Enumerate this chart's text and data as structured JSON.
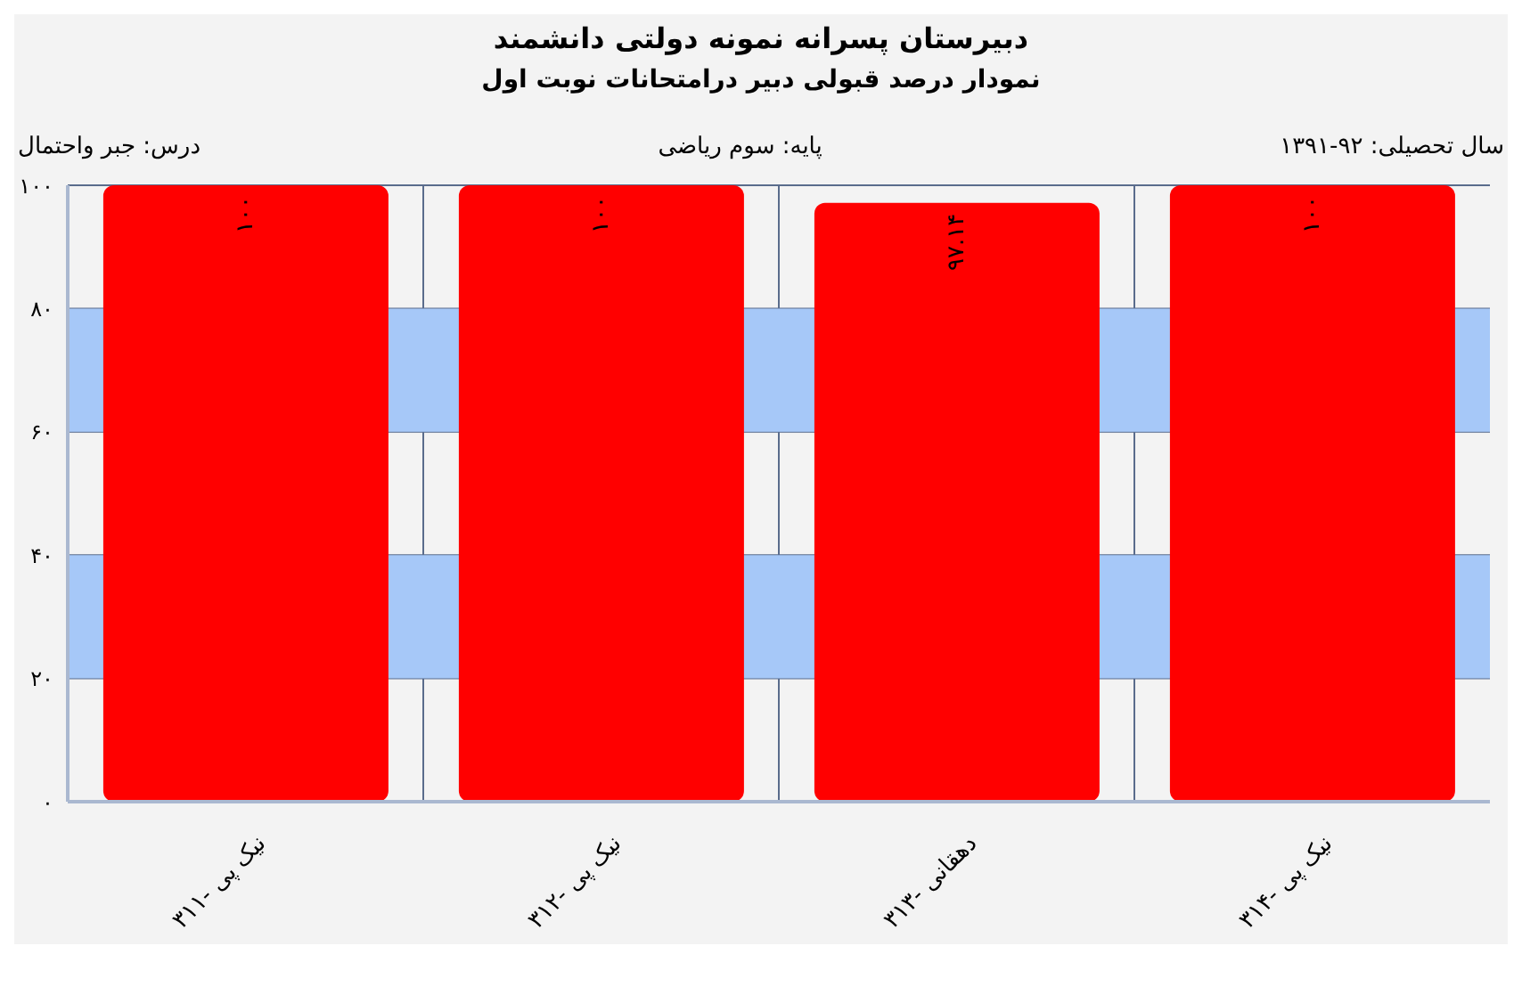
{
  "chart_data": {
    "type": "bar",
    "title": "دبیرستان پسرانه نمونه دولتی دانشمند",
    "subtitle": "نمودار درصد قبولی دبیر درامتحانات نوبت اول",
    "annotations": [
      "سال تحصیلی: ۹۲-۱۳۹۱",
      "پایه: سوم ریاضی",
      "درس: جبر واحتمال"
    ],
    "categories": [
      "نیک پی -۳۱۱",
      "نیک پی -۳۱۲",
      "دهقانی -۳۱۳",
      "نیک پی -۳۱۴"
    ],
    "values": [
      100,
      100,
      97.14,
      100
    ],
    "value_labels": [
      "۱۰۰",
      "۱۰۰",
      "۹۷.۱۴",
      "۱۰۰"
    ],
    "color": "#ff0000",
    "ylim": [
      0,
      100
    ],
    "yticks": [
      {
        "value": 0,
        "label": "۰"
      },
      {
        "value": 20,
        "label": "۲۰"
      },
      {
        "value": 40,
        "label": "۴۰"
      },
      {
        "value": 60,
        "label": "۶۰"
      },
      {
        "value": 80,
        "label": "۸۰"
      },
      {
        "value": 100,
        "label": "۱۰۰"
      }
    ],
    "bands": [
      {
        "axis": "y",
        "from": 20,
        "to": 40,
        "color": "#a6c8f8"
      },
      {
        "axis": "y",
        "from": 60,
        "to": 80,
        "color": "#a6c8f8"
      }
    ],
    "grid": true
  }
}
